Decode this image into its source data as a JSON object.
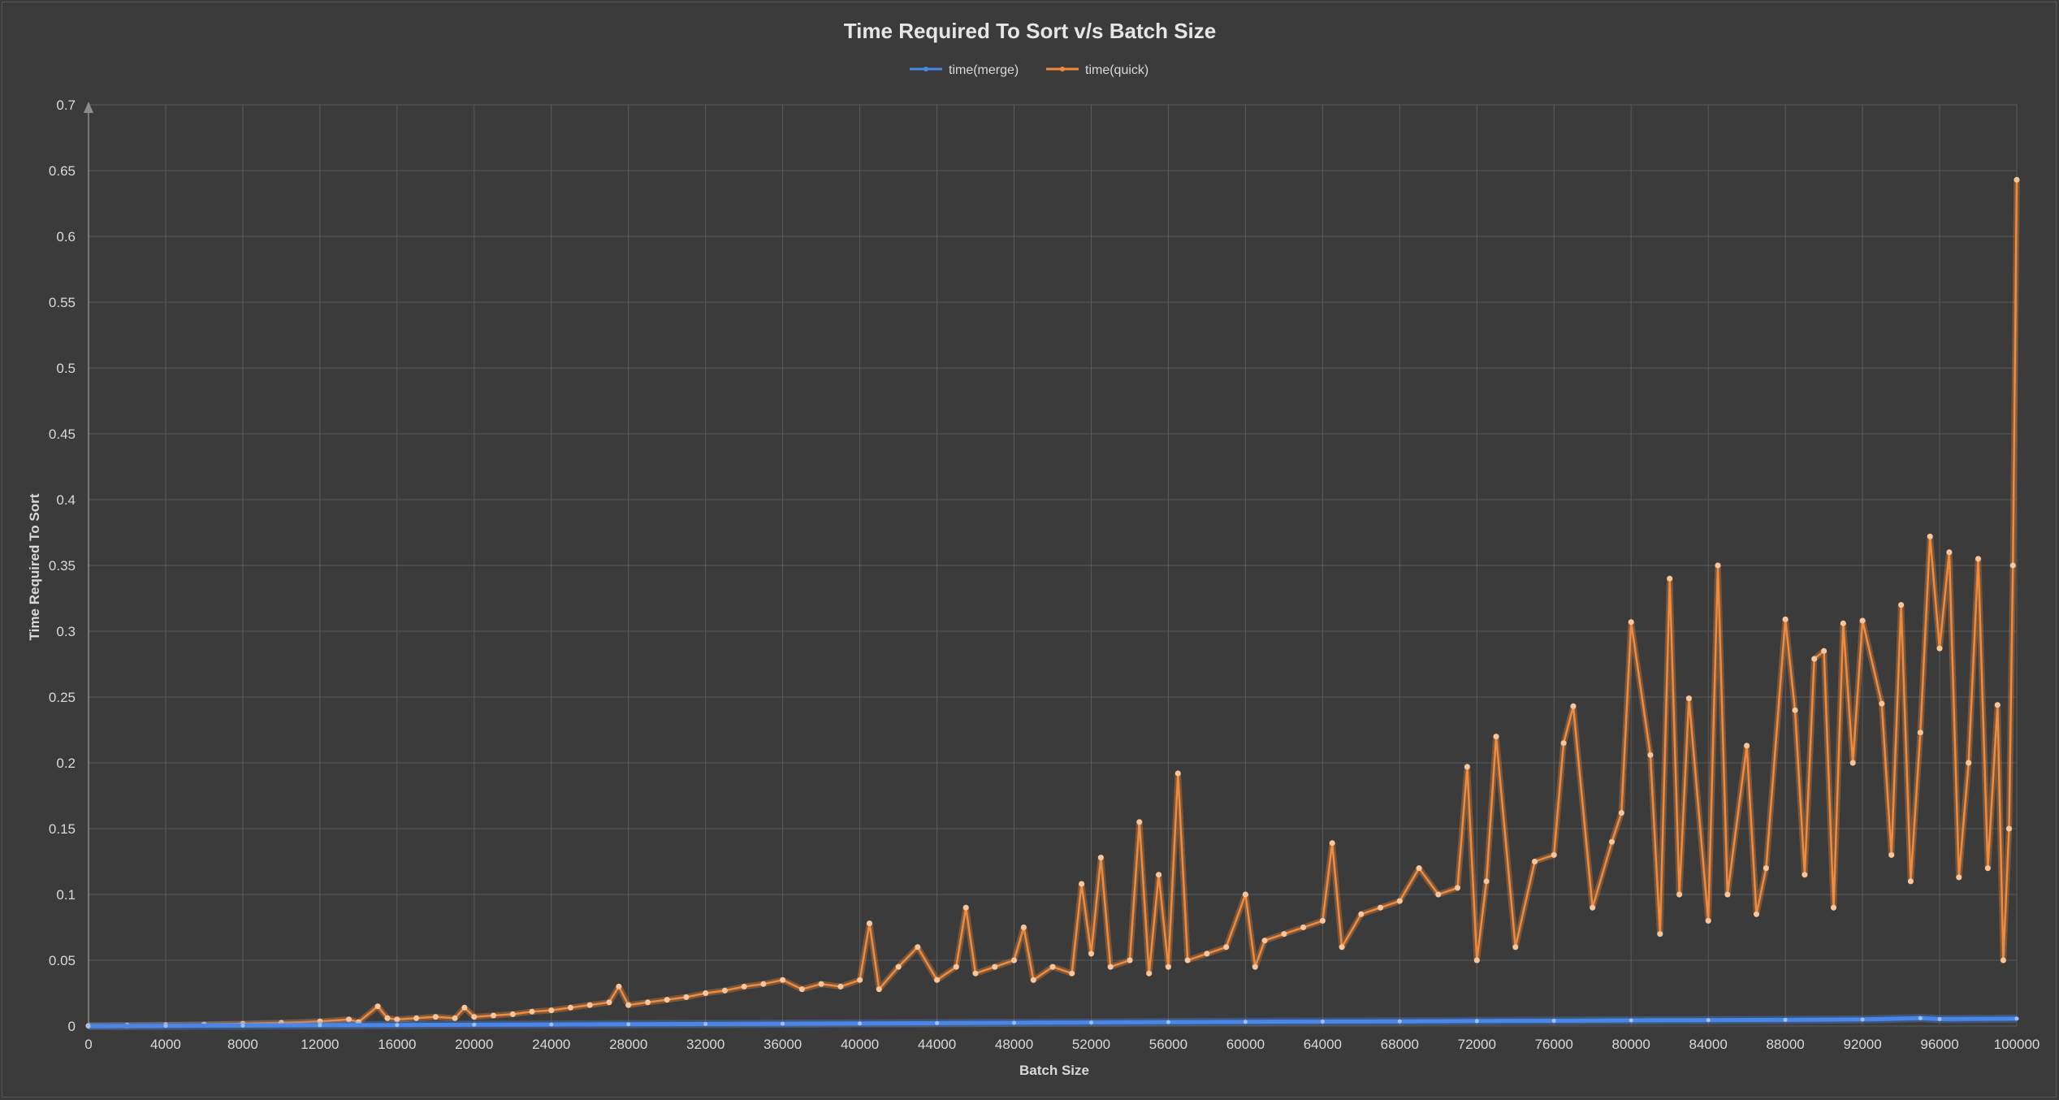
{
  "chart_data": {
    "type": "line",
    "title": "Time Required To Sort v/s Batch Size",
    "xlabel": "Batch Size",
    "ylabel": "Time Required To Sort",
    "xlim": [
      0,
      100000
    ],
    "ylim": [
      0,
      0.7
    ],
    "x_ticks": [
      0,
      4000,
      8000,
      12000,
      16000,
      20000,
      24000,
      28000,
      32000,
      36000,
      40000,
      44000,
      48000,
      52000,
      56000,
      60000,
      64000,
      68000,
      72000,
      76000,
      80000,
      84000,
      88000,
      92000,
      96000,
      100000
    ],
    "y_ticks": [
      "0",
      "0.05",
      "0.1",
      "0.15",
      "0.2",
      "0.25",
      "0.3",
      "0.35",
      "0.4",
      "0.45",
      "0.5",
      "0.55",
      "0.6",
      "0.65",
      "0.7"
    ],
    "grid": true,
    "legend_position": "top-center",
    "colors": {
      "background": "#3b3b3b",
      "merge": "#4a86e8",
      "quick": "#f08a3c"
    },
    "series": [
      {
        "name": "time(merge)",
        "x": [
          0,
          4000,
          8000,
          12000,
          16000,
          20000,
          24000,
          28000,
          32000,
          36000,
          40000,
          44000,
          48000,
          52000,
          56000,
          60000,
          64000,
          68000,
          72000,
          76000,
          80000,
          84000,
          88000,
          92000,
          95000,
          96000,
          100000
        ],
        "y": [
          0,
          0.0002,
          0.0004,
          0.0006,
          0.0008,
          0.001,
          0.0012,
          0.0014,
          0.0016,
          0.0018,
          0.002,
          0.0022,
          0.0025,
          0.0027,
          0.003,
          0.0032,
          0.0034,
          0.0036,
          0.0038,
          0.004,
          0.0043,
          0.0045,
          0.0047,
          0.005,
          0.006,
          0.0053,
          0.0056
        ]
      },
      {
        "name": "time(quick)",
        "x": [
          0,
          2000,
          4000,
          6000,
          8000,
          10000,
          12000,
          13500,
          14000,
          15000,
          15500,
          16000,
          17000,
          18000,
          19000,
          19500,
          20000,
          21000,
          22000,
          23000,
          24000,
          25000,
          26000,
          27000,
          27500,
          28000,
          29000,
          30000,
          31000,
          32000,
          33000,
          34000,
          35000,
          36000,
          37000,
          38000,
          39000,
          40000,
          40500,
          41000,
          42000,
          43000,
          44000,
          45000,
          45500,
          46000,
          47000,
          48000,
          48500,
          49000,
          50000,
          51000,
          51500,
          52000,
          52500,
          53000,
          54000,
          54500,
          55000,
          55500,
          56000,
          56500,
          57000,
          58000,
          59000,
          60000,
          60500,
          61000,
          62000,
          63000,
          64000,
          64500,
          65000,
          66000,
          67000,
          68000,
          69000,
          70000,
          71000,
          71500,
          72000,
          72500,
          73000,
          74000,
          75000,
          76000,
          76500,
          77000,
          78000,
          79000,
          79500,
          80000,
          81000,
          81500,
          82000,
          82500,
          83000,
          84000,
          84500,
          85000,
          86000,
          86500,
          87000,
          88000,
          88500,
          89000,
          89500,
          90000,
          90500,
          91000,
          91500,
          92000,
          93000,
          93500,
          94000,
          94500,
          95000,
          95500,
          96000,
          96500,
          97000,
          97500,
          98000,
          98500,
          99000,
          99300,
          99600,
          99800,
          100000
        ],
        "y": [
          0.0002,
          0.0004,
          0.0008,
          0.0012,
          0.0018,
          0.0025,
          0.0035,
          0.005,
          0.003,
          0.015,
          0.006,
          0.005,
          0.006,
          0.007,
          0.006,
          0.014,
          0.007,
          0.008,
          0.009,
          0.011,
          0.012,
          0.014,
          0.016,
          0.018,
          0.03,
          0.016,
          0.018,
          0.02,
          0.022,
          0.025,
          0.027,
          0.03,
          0.032,
          0.035,
          0.028,
          0.032,
          0.03,
          0.035,
          0.078,
          0.028,
          0.045,
          0.06,
          0.035,
          0.045,
          0.09,
          0.04,
          0.045,
          0.05,
          0.075,
          0.035,
          0.045,
          0.04,
          0.108,
          0.055,
          0.128,
          0.045,
          0.05,
          0.155,
          0.04,
          0.115,
          0.045,
          0.192,
          0.05,
          0.055,
          0.06,
          0.1,
          0.045,
          0.065,
          0.07,
          0.075,
          0.08,
          0.139,
          0.06,
          0.085,
          0.09,
          0.095,
          0.12,
          0.1,
          0.105,
          0.197,
          0.05,
          0.11,
          0.22,
          0.06,
          0.125,
          0.13,
          0.215,
          0.243,
          0.09,
          0.14,
          0.162,
          0.307,
          0.206,
          0.07,
          0.34,
          0.1,
          0.249,
          0.08,
          0.35,
          0.1,
          0.213,
          0.085,
          0.12,
          0.309,
          0.24,
          0.115,
          0.279,
          0.285,
          0.09,
          0.306,
          0.2,
          0.308,
          0.245,
          0.13,
          0.32,
          0.11,
          0.223,
          0.372,
          0.287,
          0.36,
          0.113,
          0.2,
          0.355,
          0.12,
          0.244,
          0.05,
          0.15,
          0.35,
          0.643
        ]
      }
    ]
  }
}
